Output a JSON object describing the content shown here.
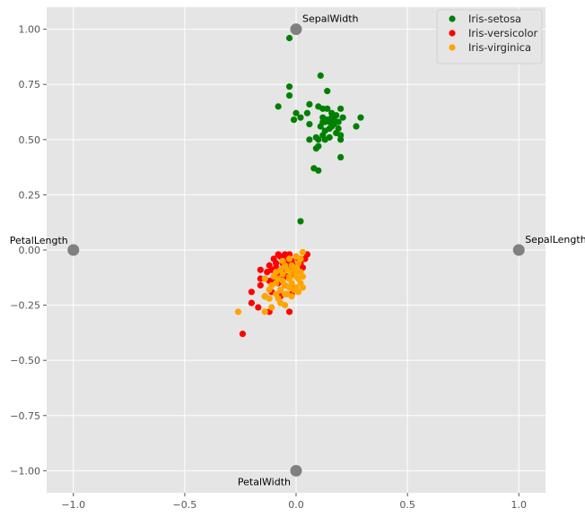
{
  "chart_data": {
    "type": "scatter",
    "title": "",
    "xlabel": "",
    "ylabel": "",
    "xlim": [
      -1.12,
      1.12
    ],
    "ylim": [
      -1.1,
      1.1
    ],
    "xticks": [
      -1.0,
      -0.5,
      0.0,
      0.5,
      1.0
    ],
    "xtick_labels": [
      "−1.0",
      "−0.5",
      "0.0",
      "0.5",
      "1.0"
    ],
    "yticks": [
      1.0,
      0.75,
      0.5,
      0.25,
      0.0,
      -0.25,
      -0.5,
      -0.75,
      -1.0
    ],
    "ytick_labels": [
      "1.00",
      "0.75",
      "0.50",
      "0.25",
      "0.00",
      "−0.25",
      "−0.50",
      "−0.75",
      "−1.00"
    ],
    "grid": true,
    "legend_position": "top-right",
    "background_color": "#e5e5e5",
    "anchors": [
      {
        "name": "SepalWidth",
        "x": 0,
        "y": 1,
        "label_align": "right-above"
      },
      {
        "name": "PetalLength",
        "x": -1,
        "y": 0,
        "label_align": "left-above"
      },
      {
        "name": "SepalLength",
        "x": 1,
        "y": 0,
        "label_align": "right-above"
      },
      {
        "name": "PetalWidth",
        "x": 0,
        "y": -1,
        "label_align": "left-below"
      }
    ],
    "anchor_color": "#808080",
    "series": [
      {
        "name": "Iris-setosa",
        "color": "#008000",
        "points": [
          [
            -0.03,
            0.96
          ],
          [
            0.11,
            0.79
          ],
          [
            -0.03,
            0.74
          ],
          [
            -0.03,
            0.7
          ],
          [
            0.14,
            0.72
          ],
          [
            -0.08,
            0.65
          ],
          [
            0.06,
            0.66
          ],
          [
            0.1,
            0.65
          ],
          [
            0.12,
            0.64
          ],
          [
            0.14,
            0.64
          ],
          [
            0.2,
            0.64
          ],
          [
            0.0,
            0.62
          ],
          [
            0.02,
            0.6
          ],
          [
            0.05,
            0.62
          ],
          [
            -0.01,
            0.59
          ],
          [
            0.12,
            0.6
          ],
          [
            0.16,
            0.6
          ],
          [
            0.18,
            0.61
          ],
          [
            0.21,
            0.6
          ],
          [
            0.29,
            0.6
          ],
          [
            0.13,
            0.58
          ],
          [
            0.15,
            0.58
          ],
          [
            0.17,
            0.59
          ],
          [
            0.19,
            0.58
          ],
          [
            0.16,
            0.56
          ],
          [
            0.06,
            0.57
          ],
          [
            0.11,
            0.56
          ],
          [
            0.15,
            0.55
          ],
          [
            0.19,
            0.55
          ],
          [
            0.27,
            0.56
          ],
          [
            0.13,
            0.54
          ],
          [
            0.18,
            0.53
          ],
          [
            0.2,
            0.52
          ],
          [
            0.12,
            0.52
          ],
          [
            0.15,
            0.51
          ],
          [
            0.06,
            0.5
          ],
          [
            0.1,
            0.5
          ],
          [
            0.13,
            0.5
          ],
          [
            0.2,
            0.5
          ],
          [
            0.1,
            0.47
          ],
          [
            0.09,
            0.46
          ],
          [
            0.2,
            0.42
          ],
          [
            0.08,
            0.37
          ],
          [
            0.1,
            0.36
          ],
          [
            0.02,
            0.13
          ],
          [
            0.16,
            0.62
          ],
          [
            0.12,
            0.58
          ],
          [
            0.17,
            0.57
          ],
          [
            0.14,
            0.59
          ],
          [
            0.09,
            0.51
          ]
        ]
      },
      {
        "name": "Iris-versicolor",
        "color": "#ff0000",
        "points": [
          [
            -0.24,
            -0.38
          ],
          [
            -0.03,
            -0.28
          ],
          [
            -0.17,
            -0.26
          ],
          [
            -0.12,
            -0.28
          ],
          [
            -0.2,
            -0.24
          ],
          [
            -0.14,
            -0.21
          ],
          [
            -0.2,
            -0.19
          ],
          [
            -0.11,
            -0.19
          ],
          [
            -0.16,
            -0.16
          ],
          [
            -0.12,
            -0.14
          ],
          [
            -0.1,
            -0.14
          ],
          [
            -0.08,
            -0.15
          ],
          [
            -0.05,
            -0.16
          ],
          [
            -0.03,
            -0.13
          ],
          [
            -0.16,
            -0.13
          ],
          [
            -0.16,
            -0.09
          ],
          [
            -0.11,
            -0.09
          ],
          [
            -0.07,
            -0.09
          ],
          [
            -0.04,
            -0.08
          ],
          [
            -0.01,
            -0.11
          ],
          [
            -0.12,
            -0.07
          ],
          [
            -0.09,
            -0.06
          ],
          [
            -0.06,
            -0.06
          ],
          [
            -0.03,
            -0.05
          ],
          [
            0.0,
            -0.07
          ],
          [
            -0.1,
            -0.04
          ],
          [
            -0.07,
            -0.03
          ],
          [
            -0.05,
            -0.04
          ],
          [
            -0.02,
            -0.05
          ],
          [
            0.02,
            -0.06
          ],
          [
            -0.08,
            -0.02
          ],
          [
            -0.05,
            -0.02
          ],
          [
            0.04,
            -0.04
          ],
          [
            0.05,
            -0.02
          ],
          [
            0.0,
            -0.03
          ],
          [
            -0.02,
            -0.2
          ],
          [
            -0.07,
            -0.21
          ],
          [
            -0.08,
            -0.11
          ],
          [
            -0.04,
            -0.12
          ],
          [
            0.03,
            -0.08
          ],
          [
            -0.09,
            -0.08
          ],
          [
            -0.06,
            -0.1
          ],
          [
            -0.04,
            -0.06
          ],
          [
            -0.02,
            -0.08
          ],
          [
            -0.13,
            -0.1
          ],
          [
            -0.1,
            -0.12
          ],
          [
            -0.06,
            -0.13
          ],
          [
            -0.01,
            -0.17
          ],
          [
            0.01,
            -0.04
          ],
          [
            -0.03,
            -0.02
          ]
        ]
      },
      {
        "name": "Iris-virginica",
        "color": "#ffa500",
        "points": [
          [
            -0.26,
            -0.28
          ],
          [
            -0.14,
            -0.28
          ],
          [
            -0.11,
            -0.26
          ],
          [
            -0.05,
            -0.25
          ],
          [
            -0.12,
            -0.22
          ],
          [
            -0.09,
            -0.2
          ],
          [
            -0.05,
            -0.2
          ],
          [
            -0.02,
            -0.21
          ],
          [
            0.01,
            -0.19
          ],
          [
            -0.07,
            -0.18
          ],
          [
            -0.03,
            -0.17
          ],
          [
            0.0,
            -0.17
          ],
          [
            0.03,
            -0.17
          ],
          [
            -0.09,
            -0.15
          ],
          [
            -0.06,
            -0.14
          ],
          [
            -0.02,
            -0.15
          ],
          [
            0.02,
            -0.15
          ],
          [
            -0.14,
            -0.13
          ],
          [
            -0.1,
            -0.12
          ],
          [
            -0.06,
            -0.11
          ],
          [
            -0.03,
            -0.12
          ],
          [
            0.0,
            -0.12
          ],
          [
            -0.07,
            -0.09
          ],
          [
            -0.04,
            -0.09
          ],
          [
            -0.01,
            -0.09
          ],
          [
            0.02,
            -0.1
          ],
          [
            -0.05,
            -0.07
          ],
          [
            -0.02,
            -0.07
          ],
          [
            0.0,
            -0.08
          ],
          [
            0.02,
            -0.04
          ],
          [
            0.0,
            -0.03
          ],
          [
            0.03,
            -0.01
          ],
          [
            -0.14,
            -0.21
          ],
          [
            -0.08,
            -0.22
          ],
          [
            -0.04,
            -0.2
          ],
          [
            -0.01,
            -0.18
          ],
          [
            -0.03,
            -0.13
          ],
          [
            0.01,
            -0.13
          ],
          [
            -0.08,
            -0.13
          ],
          [
            -0.11,
            -0.16
          ],
          [
            -0.05,
            -0.16
          ],
          [
            -0.02,
            -0.1
          ],
          [
            0.01,
            -0.06
          ],
          [
            -0.06,
            -0.05
          ],
          [
            -0.09,
            -0.1
          ],
          [
            -0.12,
            -0.18
          ],
          [
            -0.07,
            -0.24
          ],
          [
            0.03,
            -0.12
          ],
          [
            -0.03,
            -0.04
          ],
          [
            0.0,
            -0.1
          ]
        ]
      }
    ]
  }
}
